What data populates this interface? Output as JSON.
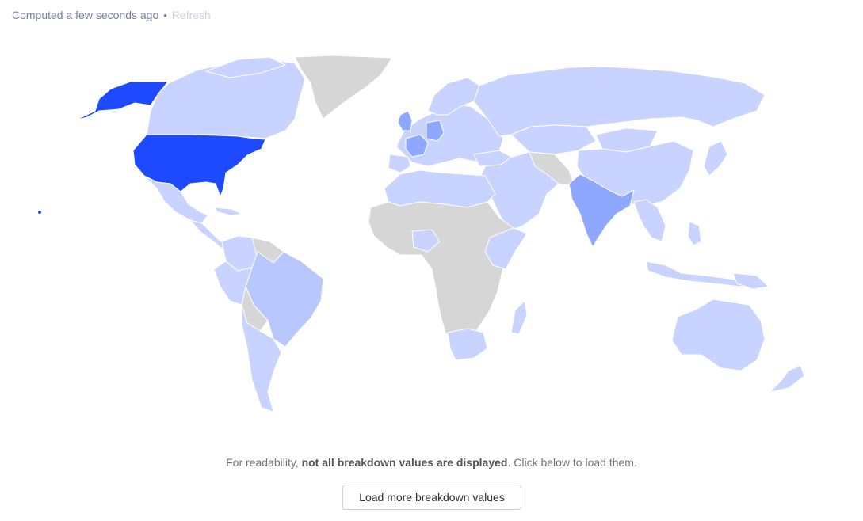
{
  "status": {
    "computed_text": "Computed a few seconds ago",
    "separator": "•",
    "refresh_label": "Refresh"
  },
  "notice": {
    "prefix": "For readability,",
    "bold": "not all breakdown values are displayed",
    "suffix": ". Click below to load them."
  },
  "load_button": {
    "label": "Load more breakdown values"
  },
  "colors": {
    "no_data": "#d6d6d6",
    "low": "#c8d4ff",
    "mid_low": "#b8c8ff",
    "mid": "#8ea8ff",
    "high": "#1d4aff"
  },
  "map": {
    "highlighted_regions": [
      {
        "region": "United States",
        "level": "high"
      },
      {
        "region": "Alaska",
        "level": "high"
      },
      {
        "region": "India",
        "level": "mid"
      },
      {
        "region": "United Kingdom",
        "level": "mid"
      },
      {
        "region": "Germany",
        "level": "mid"
      },
      {
        "region": "France",
        "level": "mid"
      }
    ]
  }
}
